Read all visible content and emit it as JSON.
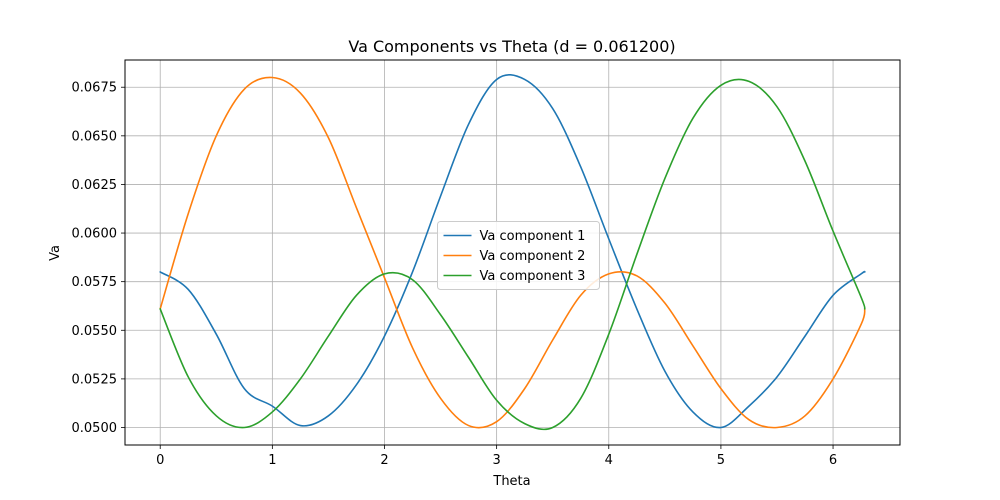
{
  "chart_data": {
    "type": "line",
    "title": "Va Components vs Theta (d = 0.061200)",
    "xlabel": "Theta",
    "ylabel": "Va",
    "xlim": [
      -0.314,
      6.597
    ],
    "ylim": [
      0.0491,
      0.0689
    ],
    "x_ticks": [
      0,
      1,
      2,
      3,
      4,
      5,
      6
    ],
    "x_tick_labels": [
      "0",
      "1",
      "2",
      "3",
      "4",
      "5",
      "6"
    ],
    "y_ticks": [
      0.05,
      0.0525,
      0.055,
      0.0575,
      0.06,
      0.0625,
      0.065,
      0.0675
    ],
    "y_tick_labels": [
      "0.0500",
      "0.0525",
      "0.0550",
      "0.0575",
      "0.0600",
      "0.0625",
      "0.0650",
      "0.0675"
    ],
    "grid": true,
    "legend_position": "center",
    "x": [
      0,
      0.25,
      0.5,
      0.75,
      1.0,
      1.25,
      1.5,
      1.75,
      2.0,
      2.25,
      2.5,
      2.75,
      3.0,
      3.25,
      3.5,
      3.75,
      4.0,
      4.25,
      4.5,
      4.75,
      5.0,
      5.25,
      5.5,
      5.75,
      6.0,
      6.25,
      6.283
    ],
    "series": [
      {
        "name": "Va component 1",
        "color": "#1f77b4",
        "values": [
          0.058,
          0.0571,
          0.0548,
          0.052,
          0.0511,
          0.0501,
          0.0506,
          0.0522,
          0.0547,
          0.058,
          0.0619,
          0.0656,
          0.0679,
          0.0679,
          0.0664,
          0.0634,
          0.0597,
          0.0561,
          0.0529,
          0.0508,
          0.05,
          0.0511,
          0.0526,
          0.0547,
          0.0568,
          0.0579,
          0.058
        ]
      },
      {
        "name": "Va component 2",
        "color": "#ff7f0e",
        "values": [
          0.0561,
          0.061,
          0.065,
          0.0674,
          0.068,
          0.0672,
          0.0649,
          0.0613,
          0.0577,
          0.0541,
          0.0515,
          0.0501,
          0.0503,
          0.052,
          0.0545,
          0.0568,
          0.0579,
          0.0578,
          0.0564,
          0.0542,
          0.052,
          0.0504,
          0.05,
          0.0506,
          0.0525,
          0.0553,
          0.0561
        ]
      },
      {
        "name": "Va component 3",
        "color": "#2ca02c",
        "values": [
          0.0561,
          0.0526,
          0.0506,
          0.05,
          0.0508,
          0.0525,
          0.0547,
          0.0568,
          0.0579,
          0.0576,
          0.0558,
          0.0536,
          0.0514,
          0.0502,
          0.05,
          0.0515,
          0.0548,
          0.0589,
          0.0628,
          0.0659,
          0.0676,
          0.0678,
          0.0665,
          0.0637,
          0.0601,
          0.0567,
          0.0561
        ]
      }
    ]
  }
}
